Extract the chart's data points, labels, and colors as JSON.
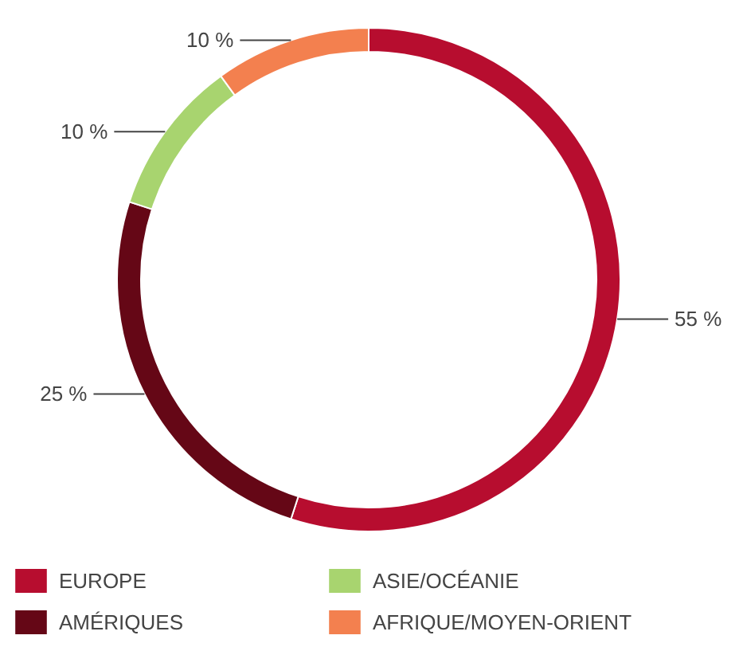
{
  "chart_data": {
    "type": "donut",
    "categories": [
      "EUROPE",
      "AMÉRIQUES",
      "ASIE/OCÉANIE",
      "AFRIQUE/MOYEN-ORIENT"
    ],
    "values": [
      55,
      25,
      10,
      10
    ],
    "colors": [
      "#b70d2f",
      "#650716",
      "#a8d46f",
      "#f3804f"
    ],
    "value_labels": [
      "55 %",
      "25 %",
      "10 %",
      "10 %"
    ],
    "legend": "bottom"
  }
}
